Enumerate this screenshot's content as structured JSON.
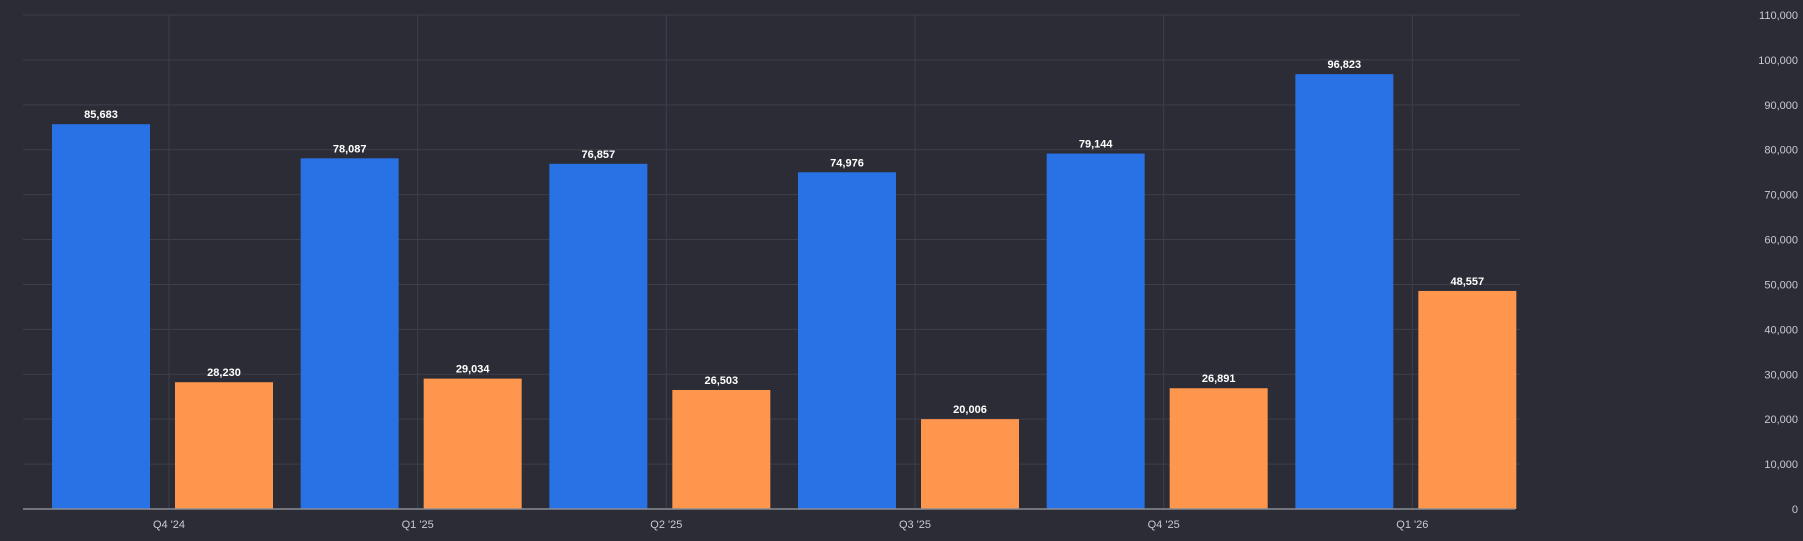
{
  "chart_data": {
    "type": "bar",
    "title": "",
    "xlabel": "",
    "ylabel": "",
    "categories": [
      "Q4 '24",
      "Q1 '25",
      "Q2 '25",
      "Q3 '25",
      "Q4 '25",
      "Q1 '26"
    ],
    "series": [
      {
        "values": [
          85683,
          78087,
          76857,
          74976,
          79144,
          96823
        ],
        "color": "#2872e6"
      },
      {
        "values": [
          28230,
          29034,
          26503,
          20006,
          26891,
          48557
        ],
        "color": "#ff964d"
      }
    ],
    "ylim": [
      0,
      110000
    ],
    "yticks": [
      0,
      10000,
      20000,
      30000,
      40000,
      50000,
      60000,
      70000,
      80000,
      90000,
      100000,
      110000
    ],
    "ytick_labels": [
      "0",
      "10,000",
      "20,000",
      "30,000",
      "40,000",
      "50,000",
      "60,000",
      "70,000",
      "80,000",
      "90,000",
      "100,000",
      "110,000"
    ],
    "data_labels": [
      [
        "85,683",
        "78,087",
        "76,857",
        "74,976",
        "79,144",
        "96,823"
      ],
      [
        "28,230",
        "29,034",
        "26,503",
        "20,006",
        "26,891",
        "48,557"
      ]
    ],
    "y_axis_position": "right",
    "grid": true,
    "legend": "none"
  },
  "colors": {
    "background": "#2b2c35",
    "grid": "#3e3f49",
    "axis": "#8a8b94",
    "tick_text": "#c9cad1",
    "label_text": "#ffffff"
  }
}
